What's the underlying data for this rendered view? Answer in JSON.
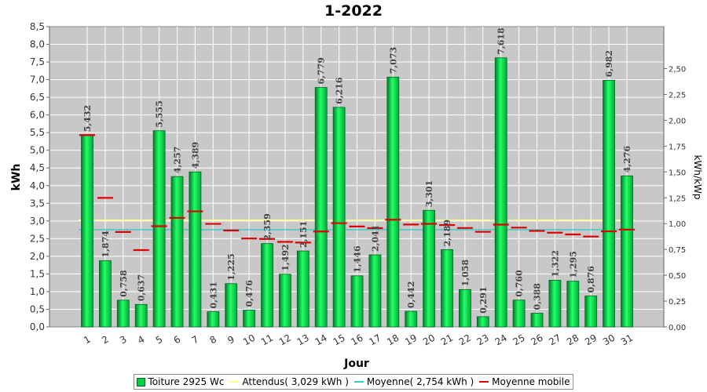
{
  "chart_data": {
    "type": "bar",
    "title": "1-2022",
    "xlabel": "Jour",
    "ylabel": "kWh",
    "y2label": "kWh/kWp",
    "ylim": [
      0,
      8.5
    ],
    "y2lim": [
      0,
      2.906
    ],
    "yticks": [
      "0,0",
      "0,5",
      "1,0",
      "1,5",
      "2,0",
      "2,5",
      "3,0",
      "3,5",
      "4,0",
      "4,5",
      "5,0",
      "5,5",
      "6,0",
      "6,5",
      "7,0",
      "7,5",
      "8,0",
      "8,5"
    ],
    "y2ticks": [
      "0,00",
      "0,25",
      "0,50",
      "0,75",
      "1,00",
      "1,25",
      "1,50",
      "1,75",
      "2,00",
      "2,25",
      "2,50"
    ],
    "categories": [
      "1",
      "2",
      "3",
      "4",
      "5",
      "6",
      "7",
      "8",
      "9",
      "10",
      "11",
      "12",
      "13",
      "14",
      "15",
      "16",
      "17",
      "18",
      "19",
      "20",
      "21",
      "22",
      "23",
      "24",
      "25",
      "26",
      "27",
      "28",
      "29",
      "30",
      "31"
    ],
    "series": [
      {
        "name": "Toiture 2925 Wc",
        "type": "bar",
        "color": "#00cc44",
        "values": [
          5.432,
          1.874,
          0.758,
          0.637,
          5.555,
          4.257,
          4.389,
          0.431,
          1.225,
          0.476,
          2.359,
          1.492,
          2.151,
          6.779,
          6.216,
          1.446,
          2.041,
          7.073,
          0.442,
          3.301,
          2.189,
          1.058,
          0.291,
          7.618,
          0.76,
          0.388,
          1.322,
          1.295,
          0.876,
          6.982,
          4.276
        ],
        "labels": [
          "5,432",
          "1,874",
          "0,758",
          "0,637",
          "5,555",
          "4,257",
          "4,389",
          "0,431",
          "1,225",
          "0,476",
          "2,359",
          "1,492",
          "2,151",
          "6,779",
          "6,216",
          "1,446",
          "2,041",
          "7,073",
          "0,442",
          "3,301",
          "2,189",
          "1,058",
          "0,291",
          "7,618",
          "0,760",
          "0,388",
          "1,322",
          "1,295",
          "0,876",
          "6,982",
          "4,276"
        ]
      },
      {
        "name": "Moyenne mobile",
        "type": "step",
        "color": "#dd0000",
        "values": [
          5.432,
          3.653,
          2.688,
          2.175,
          2.851,
          3.086,
          3.272,
          2.917,
          2.729,
          2.504,
          2.491,
          2.408,
          2.388,
          2.702,
          2.937,
          2.844,
          2.797,
          3.035,
          2.899,
          2.919,
          2.884,
          2.801,
          2.692,
          2.897,
          2.812,
          2.719,
          2.668,
          2.619,
          2.559,
          2.706,
          2.754
        ]
      },
      {
        "name": "Attendus( 3,029 kWh )",
        "type": "hline",
        "color": "#ffff88",
        "value": 3.029
      },
      {
        "name": "Moyenne( 2,754 kWh )",
        "type": "hline",
        "color": "#33cccc",
        "value": 2.754
      }
    ],
    "grid": true,
    "legend": "bottom"
  },
  "colors": {
    "plot_bg": "#c8c8c8",
    "bar_fill": "#00cc44",
    "bar_edge": "#006622",
    "moving_avg": "#dd0000",
    "expected": "#ffff88",
    "average": "#33cccc"
  }
}
